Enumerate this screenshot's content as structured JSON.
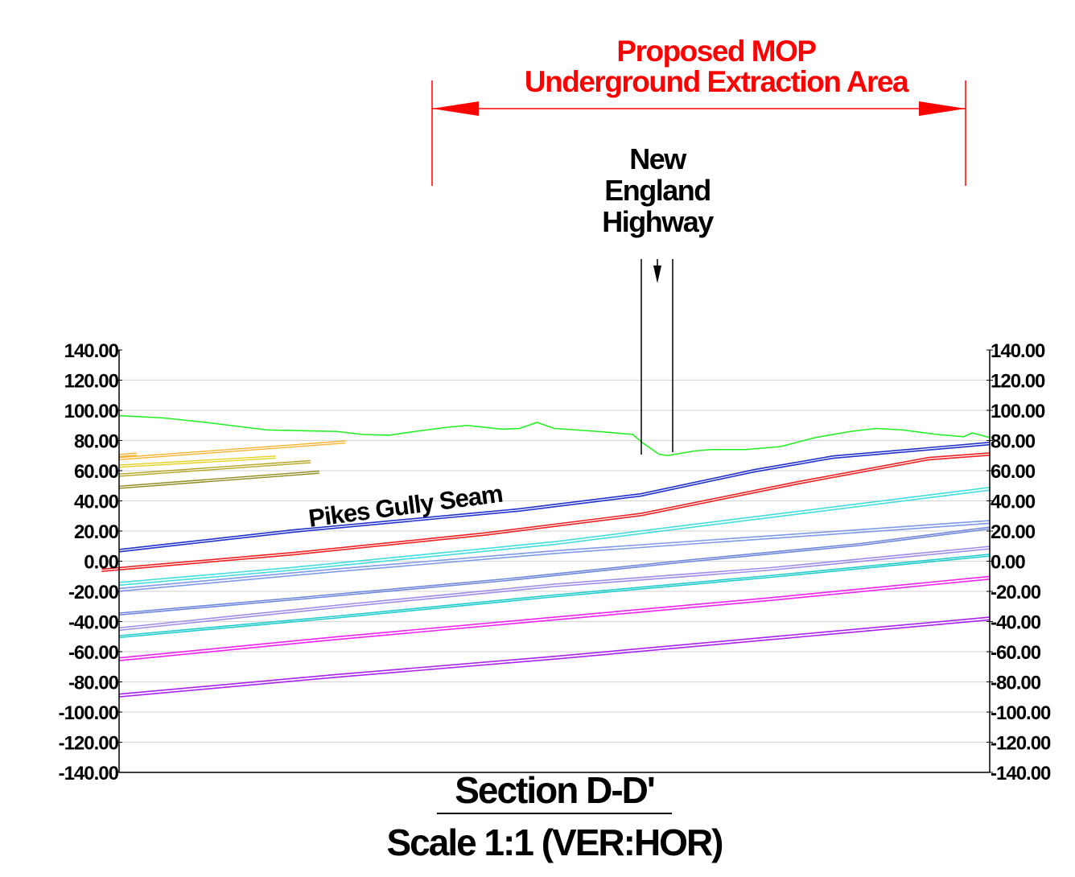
{
  "extraction_label": {
    "line1": "Proposed MOP",
    "line2": "Underground Extraction Area",
    "color": "#ff0000"
  },
  "highway_label": {
    "line1": "New",
    "line2": "England",
    "line3": "Highway"
  },
  "seam_label": "Pikes Gully Seam",
  "title": "Section D-D'",
  "subtitle": "Scale 1:1 (VER:HOR)",
  "axis": {
    "ticks": [
      "140.00",
      "120.00",
      "100.00",
      "80.00",
      "60.00",
      "40.00",
      "20.00",
      "0.00",
      "-20.00",
      "-40.00",
      "-60.00",
      "-80.00",
      "-100.00",
      "-120.00",
      "-140.00"
    ],
    "tick_values": [
      140,
      120,
      100,
      80,
      60,
      40,
      20,
      0,
      -20,
      -40,
      -60,
      -80,
      -100,
      -120,
      -140
    ],
    "gridline_color": "#d9d9d9"
  },
  "profiles": [
    {
      "name": "ground-surface",
      "color": "#22ee22",
      "double": false,
      "pts": [
        [
          0,
          96.5
        ],
        [
          0.05,
          95
        ],
        [
          0.1,
          92
        ],
        [
          0.17,
          87
        ],
        [
          0.25,
          86
        ],
        [
          0.28,
          84
        ],
        [
          0.31,
          83.5
        ],
        [
          0.34,
          86
        ],
        [
          0.38,
          89
        ],
        [
          0.4,
          90
        ],
        [
          0.44,
          87.5
        ],
        [
          0.46,
          88
        ],
        [
          0.48,
          92
        ],
        [
          0.5,
          88
        ],
        [
          0.55,
          86
        ],
        [
          0.59,
          84
        ],
        [
          0.6,
          79
        ],
        [
          0.61,
          75
        ],
        [
          0.62,
          71
        ],
        [
          0.63,
          70
        ],
        [
          0.64,
          71
        ],
        [
          0.65,
          72
        ],
        [
          0.66,
          73
        ],
        [
          0.68,
          74
        ],
        [
          0.72,
          74
        ],
        [
          0.76,
          76
        ],
        [
          0.8,
          82
        ],
        [
          0.84,
          86
        ],
        [
          0.87,
          88
        ],
        [
          0.9,
          87
        ],
        [
          0.94,
          84
        ],
        [
          0.97,
          82.5
        ],
        [
          0.98,
          85
        ],
        [
          1,
          82
        ]
      ]
    },
    {
      "name": "seam-blue",
      "color": "#2233cc",
      "double": true,
      "gap": 1.5,
      "pts": [
        [
          0,
          7
        ],
        [
          0.2,
          20
        ],
        [
          0.46,
          34
        ],
        [
          0.6,
          44
        ],
        [
          0.73,
          60
        ],
        [
          0.82,
          69
        ],
        [
          1,
          78
        ]
      ]
    },
    {
      "name": "seam-red",
      "color": "#ee2222",
      "double": true,
      "gap": 1.5,
      "pts": [
        [
          -0.02,
          -6
        ],
        [
          0.2,
          5
        ],
        [
          0.42,
          18
        ],
        [
          0.6,
          31
        ],
        [
          0.78,
          52
        ],
        [
          0.93,
          68
        ],
        [
          1,
          71
        ]
      ]
    },
    {
      "name": "seam-cyan",
      "color": "#44dddd",
      "double": true,
      "gap": 1.8,
      "pts": [
        [
          0,
          -15
        ],
        [
          0.2,
          -5
        ],
        [
          0.5,
          12
        ],
        [
          0.75,
          30
        ],
        [
          1,
          48
        ]
      ]
    },
    {
      "name": "seam-lightblue",
      "color": "#7f99e6",
      "double": true,
      "gap": 1.8,
      "pts": [
        [
          0,
          -19
        ],
        [
          0.25,
          -6
        ],
        [
          0.5,
          6
        ],
        [
          0.75,
          16
        ],
        [
          1,
          26
        ]
      ]
    },
    {
      "name": "seam-steelblue",
      "color": "#6f88dd",
      "double": true,
      "gap": 1.2,
      "pts": [
        [
          0,
          -35
        ],
        [
          0.2,
          -25
        ],
        [
          0.45,
          -12
        ],
        [
          0.65,
          0
        ],
        [
          0.85,
          11
        ],
        [
          1,
          22
        ]
      ]
    },
    {
      "name": "seam-lavender",
      "color": "#a08be8",
      "double": true,
      "gap": 1.6,
      "pts": [
        [
          0,
          -45
        ],
        [
          0.25,
          -30
        ],
        [
          0.5,
          -16
        ],
        [
          0.75,
          -5
        ],
        [
          1,
          9
        ]
      ]
    },
    {
      "name": "seam-teal",
      "color": "#22cccc",
      "double": true,
      "gap": 1.2,
      "pts": [
        [
          0,
          -50
        ],
        [
          0.25,
          -37
        ],
        [
          0.5,
          -23
        ],
        [
          0.75,
          -10
        ],
        [
          1,
          4
        ]
      ]
    },
    {
      "name": "seam-magenta",
      "color": "#ee22ee",
      "double": true,
      "gap": 1.8,
      "pts": [
        [
          0,
          -65
        ],
        [
          0.25,
          -51
        ],
        [
          0.5,
          -38
        ],
        [
          0.75,
          -25
        ],
        [
          1,
          -11
        ]
      ]
    },
    {
      "name": "seam-purple",
      "color": "#aa22ee",
      "double": true,
      "gap": 1.8,
      "pts": [
        [
          0,
          -89
        ],
        [
          0.25,
          -76
        ],
        [
          0.5,
          -64
        ],
        [
          0.75,
          -51
        ],
        [
          1,
          -38
        ]
      ]
    }
  ],
  "left_stubs": [
    {
      "color": "#f5b230",
      "pts": [
        [
          0,
          68
        ],
        [
          0.26,
          79
        ]
      ],
      "double": true
    },
    {
      "color": "#f5b230",
      "pts": [
        [
          0,
          70
        ],
        [
          0.02,
          71
        ]
      ],
      "double": true
    },
    {
      "color": "#e6d21e",
      "pts": [
        [
          0,
          63
        ],
        [
          0.18,
          69
        ]
      ],
      "double": true
    },
    {
      "color": "#b5a522",
      "pts": [
        [
          0,
          57
        ],
        [
          0.22,
          66
        ]
      ],
      "double": true
    },
    {
      "color": "#8f8a1c",
      "pts": [
        [
          0,
          49
        ],
        [
          0.23,
          59
        ]
      ],
      "double": true
    }
  ]
}
